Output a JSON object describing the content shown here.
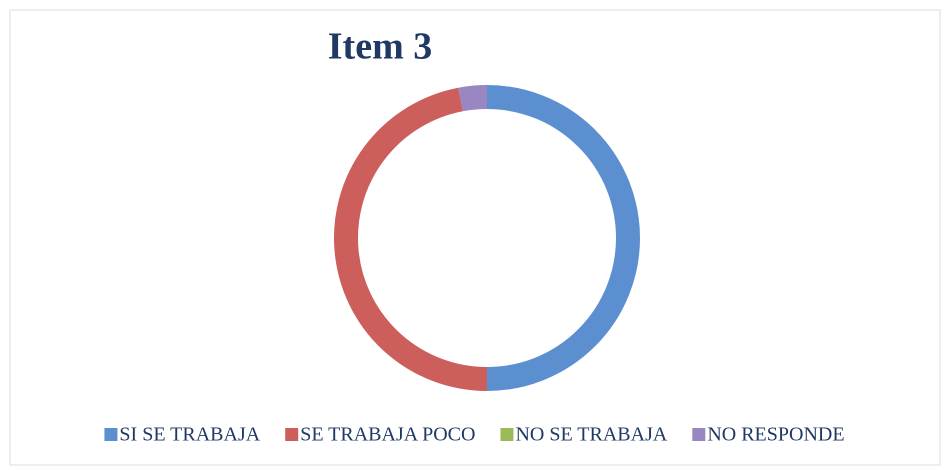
{
  "chart_data": {
    "type": "donut",
    "title": "Item 3",
    "categories": [
      "SI SE TRABAJA",
      "SE TRABAJA POCO",
      "NO SE TRABAJA",
      "NO RESPONDE"
    ],
    "values": [
      50,
      47,
      0,
      3
    ],
    "colors": [
      "#5b8fd0",
      "#cc5e5b",
      "#9bbb59",
      "#9a86c0"
    ],
    "legend": "bottom"
  }
}
